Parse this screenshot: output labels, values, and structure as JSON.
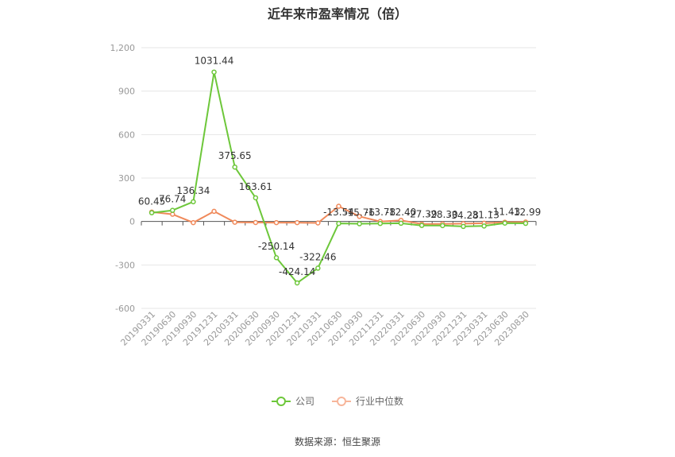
{
  "chart_data": {
    "type": "line",
    "title": "近年来市盈率情况（倍）",
    "categories": [
      "20190331",
      "20190630",
      "20190930",
      "20191231",
      "20200331",
      "20200630",
      "20200930",
      "20201231",
      "20210331",
      "20210630",
      "20210930",
      "20211231",
      "20220331",
      "20220630",
      "20220930",
      "20221231",
      "20230331",
      "20230630",
      "20230830"
    ],
    "series": [
      {
        "name": "公司",
        "color": "#6dc73a",
        "values": [
          60.45,
          76.74,
          136.34,
          1031.44,
          375.65,
          163.61,
          -250.14,
          -424.14,
          -322.46,
          -13.54,
          -15.76,
          -13.78,
          -12.4,
          -27.39,
          -28.3,
          -34.28,
          -31.13,
          -11.43,
          -12.99
        ],
        "labels": [
          "60.45",
          "76.74",
          "136.34",
          "1031.44",
          "375.65",
          "163.61",
          "-250.14",
          "-424.14",
          "-322.46",
          "-13.54",
          "-15.76",
          "-13.78",
          "-12.40",
          "-27.39",
          "-28.30",
          "-34.28",
          "-31.13",
          "-11.43",
          "-12.99"
        ]
      },
      {
        "name": "行业中位数",
        "color": "#f0895a",
        "values": [
          65,
          50,
          -8,
          70,
          -5,
          -7,
          -8,
          -8,
          -10,
          105,
          35,
          0,
          8,
          -18,
          -17,
          -15,
          -12,
          -5,
          -4
        ]
      }
    ],
    "ylim": [
      -600,
      1200
    ],
    "yticks": [
      -600,
      -300,
      0,
      300,
      600,
      900,
      1200
    ],
    "ytick_labels": [
      "-600",
      "-300",
      "0",
      "300",
      "600",
      "900",
      "1,200"
    ],
    "grid": true,
    "legend_position": "bottom-center"
  },
  "legend": {
    "company": "公司",
    "industry": "行业中位数"
  },
  "source": "数据来源：恒生聚源"
}
